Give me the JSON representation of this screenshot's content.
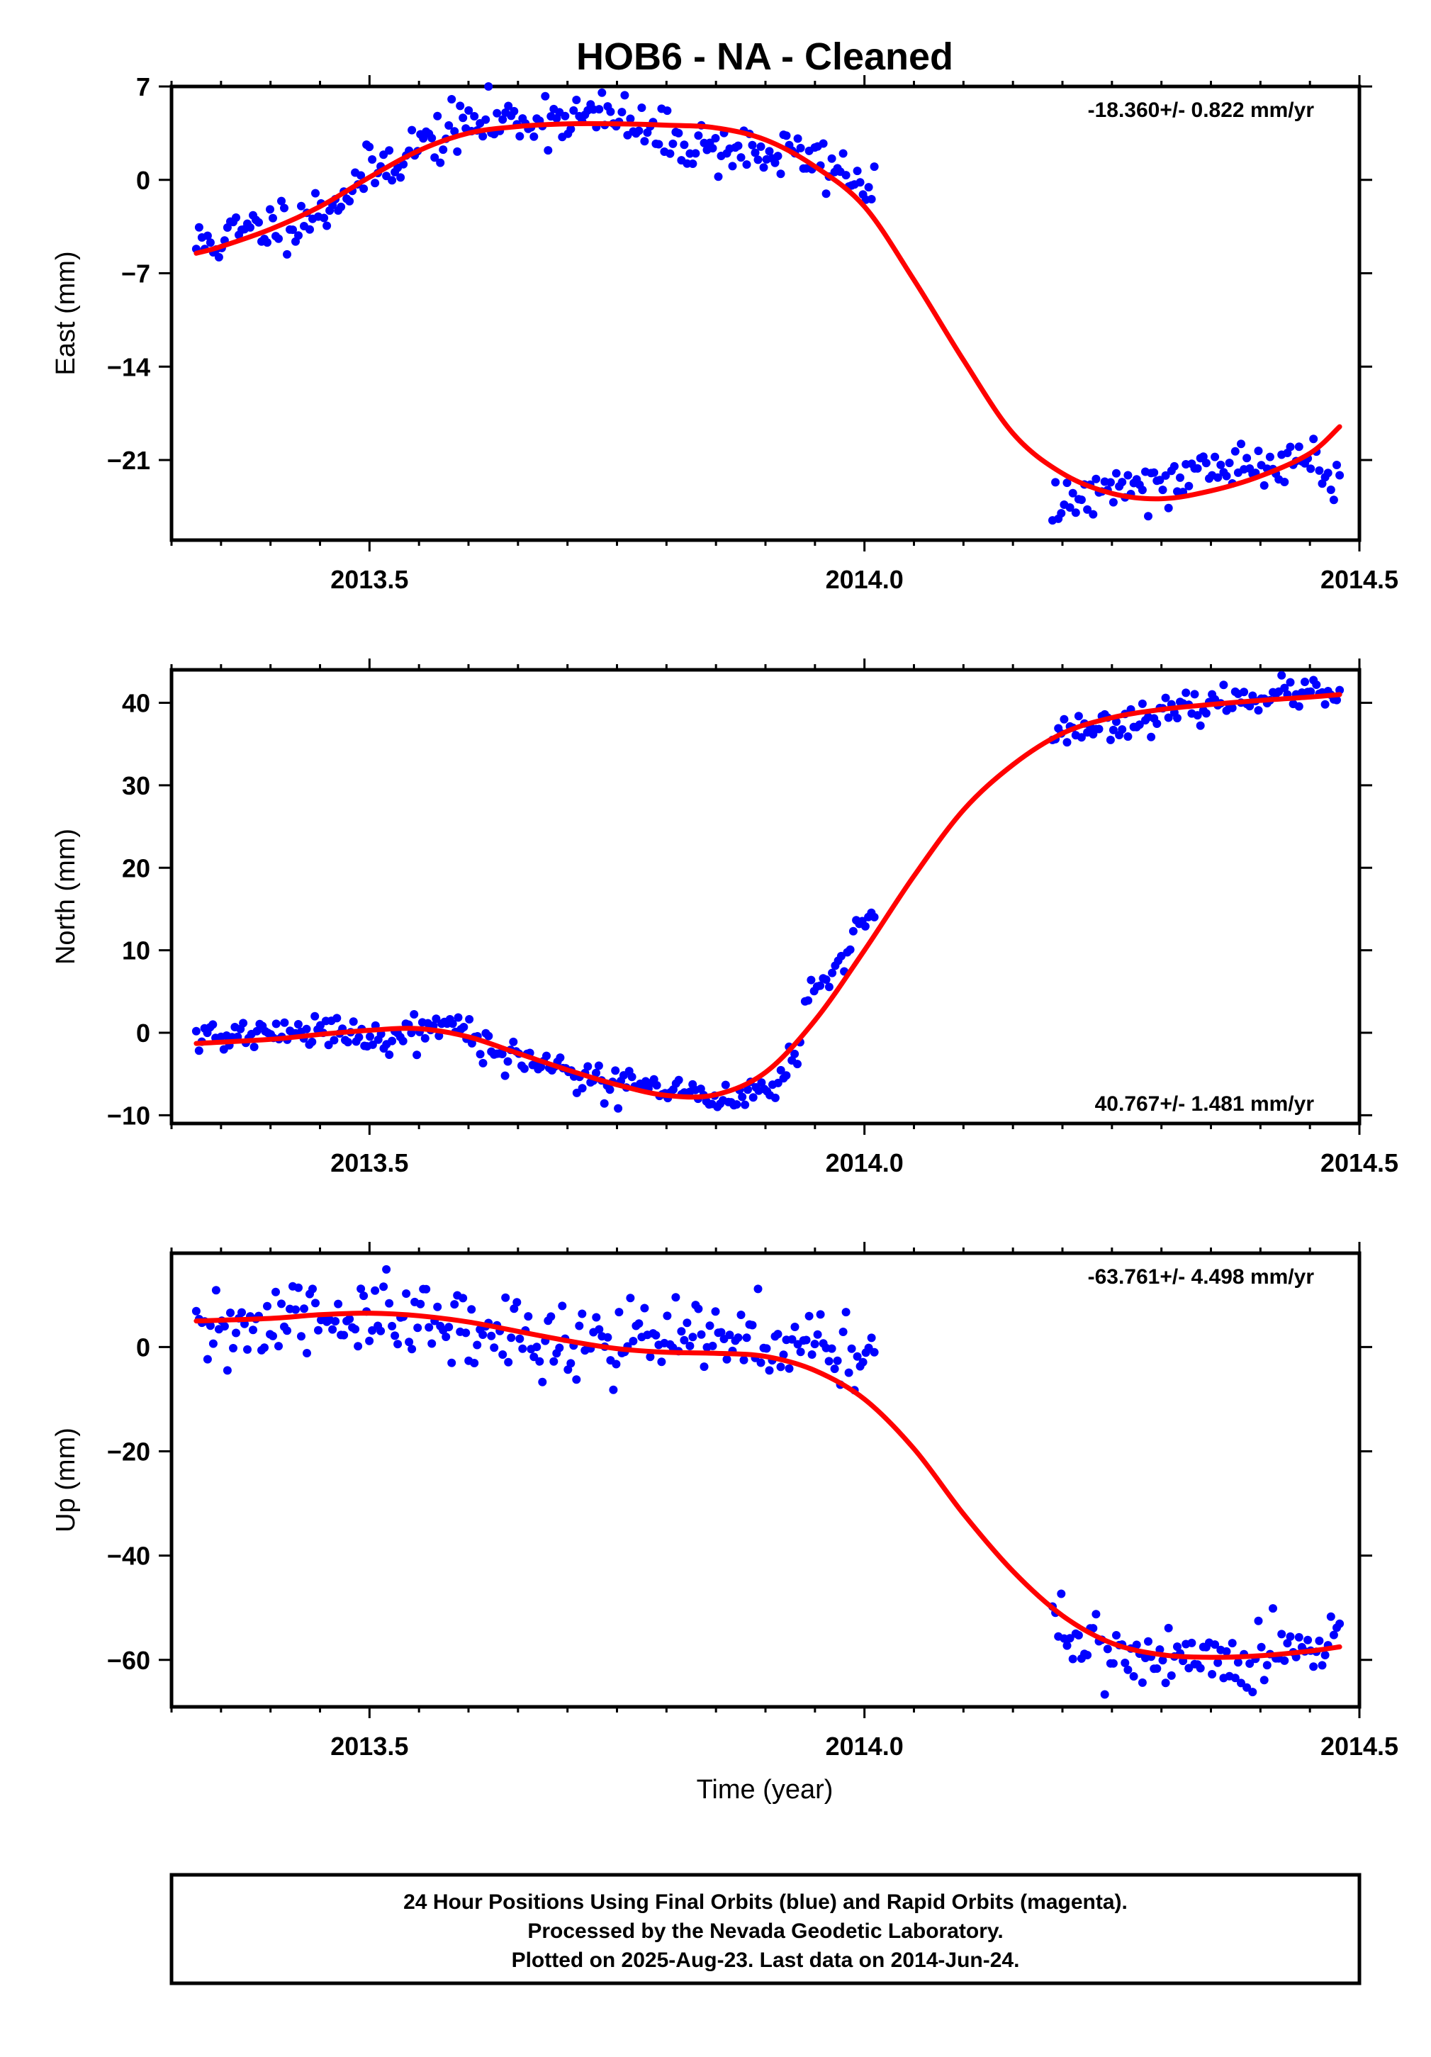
{
  "title": "HOB6  - NA - Cleaned",
  "xlabel": "Time (year)",
  "footer": [
    "24 Hour Positions Using Final Orbits (blue) and Rapid Orbits (magenta).",
    "Processed by the Nevada Geodetic Laboratory.",
    "Plotted on 2025-Aug-23. Last data on 2014-Jun-24."
  ],
  "colors": {
    "final_orbits": "#0000ff",
    "fit": "#ff0000",
    "frame": "#000000"
  },
  "chart_data": [
    {
      "type": "scatter",
      "component": "east",
      "ylabel": "East (mm)",
      "rate_label": "-18.360+/- 0.822 mm/yr",
      "rate_position": "top-right",
      "xlim": [
        2013.3,
        2014.5
      ],
      "ylim": [
        -27,
        7
      ],
      "xticks": [
        2013.5,
        2014.0,
        2014.5
      ],
      "xtick_labels": [
        "2013.5",
        "2014.0",
        "2014.5"
      ],
      "yticks": [
        7,
        0,
        -7,
        -14,
        -21
      ],
      "ytick_labels": [
        "7",
        "0",
        "−7",
        "−14",
        "−21"
      ],
      "gap": [
        2014.01,
        2014.19
      ],
      "series": [
        {
          "role": "data",
          "segments": [
            {
              "x0": 2013.325,
              "x1": 2014.01,
              "n": 240,
              "knots": [
                [
                  2013.32,
                  -5.0
                ],
                [
                  2013.4,
                  -3.4
                ],
                [
                  2013.45,
                  -2.4
                ],
                [
                  2013.5,
                  0.5
                ],
                [
                  2013.55,
                  2.6
                ],
                [
                  2013.6,
                  4.2
                ],
                [
                  2013.65,
                  4.5
                ],
                [
                  2013.7,
                  4.8
                ],
                [
                  2013.75,
                  4.6
                ],
                [
                  2013.8,
                  3.0
                ],
                [
                  2013.85,
                  2.5
                ],
                [
                  2013.9,
                  2.0
                ],
                [
                  2013.95,
                  1.6
                ],
                [
                  2014.01,
                  -0.5
                ]
              ],
              "noise": 1.0,
              "seed": 11
            },
            {
              "x0": 2014.19,
              "x1": 2014.48,
              "n": 100,
              "knots": [
                [
                  2014.19,
                  -24.5
                ],
                [
                  2014.22,
                  -23.8
                ],
                [
                  2014.25,
                  -22.8
                ],
                [
                  2014.3,
                  -22.3
                ],
                [
                  2014.35,
                  -21.6
                ],
                [
                  2014.4,
                  -21.5
                ],
                [
                  2014.45,
                  -21.2
                ],
                [
                  2014.48,
                  -22.2
                ]
              ],
              "noise": 0.9,
              "seed": 12
            }
          ]
        },
        {
          "role": "fit",
          "points": [
            [
              2013.325,
              -5.5
            ],
            [
              2013.35,
              -5.0
            ],
            [
              2013.4,
              -3.7
            ],
            [
              2013.45,
              -2.0
            ],
            [
              2013.5,
              0.2
            ],
            [
              2013.55,
              2.2
            ],
            [
              2013.6,
              3.5
            ],
            [
              2013.65,
              4.0
            ],
            [
              2013.7,
              4.2
            ],
            [
              2013.75,
              4.2
            ],
            [
              2013.8,
              4.1
            ],
            [
              2013.85,
              3.9
            ],
            [
              2013.9,
              3.0
            ],
            [
              2013.95,
              1.0
            ],
            [
              2014.0,
              -2.0
            ],
            [
              2014.05,
              -7.5
            ],
            [
              2014.1,
              -13.5
            ],
            [
              2014.15,
              -19.0
            ],
            [
              2014.2,
              -22.0
            ],
            [
              2014.25,
              -23.5
            ],
            [
              2014.3,
              -23.9
            ],
            [
              2014.35,
              -23.3
            ],
            [
              2014.4,
              -22.2
            ],
            [
              2014.45,
              -20.5
            ],
            [
              2014.48,
              -18.5
            ]
          ]
        }
      ]
    },
    {
      "type": "scatter",
      "component": "north",
      "ylabel": "North (mm)",
      "rate_label": "40.767+/- 1.481 mm/yr",
      "rate_position": "bottom-right",
      "xlim": [
        2013.3,
        2014.5
      ],
      "ylim": [
        -11,
        44
      ],
      "xticks": [
        2013.5,
        2014.0,
        2014.5
      ],
      "xtick_labels": [
        "2013.5",
        "2014.0",
        "2014.5"
      ],
      "yticks": [
        40,
        30,
        20,
        10,
        0,
        -10
      ],
      "ytick_labels": [
        "40",
        "30",
        "20",
        "10",
        "0",
        "−10"
      ],
      "gap": [
        2014.01,
        2014.19
      ],
      "series": [
        {
          "role": "data",
          "segments": [
            {
              "x0": 2013.325,
              "x1": 2013.935,
              "n": 220,
              "knots": [
                [
                  2013.32,
                  -0.5
                ],
                [
                  2013.4,
                  -0.2
                ],
                [
                  2013.45,
                  0.3
                ],
                [
                  2013.5,
                  -0.5
                ],
                [
                  2013.58,
                  1.0
                ],
                [
                  2013.62,
                  -2.0
                ],
                [
                  2013.7,
                  -4.5
                ],
                [
                  2013.78,
                  -7.0
                ],
                [
                  2013.85,
                  -8.0
                ],
                [
                  2013.9,
                  -7.0
                ],
                [
                  2013.935,
                  -3.0
                ]
              ],
              "noise": 1.0,
              "seed": 21
            },
            {
              "x0": 2013.94,
              "x1": 2014.01,
              "n": 24,
              "knots": [
                [
                  2013.94,
                  4.0
                ],
                [
                  2013.96,
                  6.0
                ],
                [
                  2013.98,
                  9.0
                ],
                [
                  2013.99,
                  13.0
                ],
                [
                  2014.01,
                  14.0
                ]
              ],
              "noise": 0.8,
              "seed": 22
            },
            {
              "x0": 2014.19,
              "x1": 2014.48,
              "n": 100,
              "knots": [
                [
                  2014.19,
                  36.5
                ],
                [
                  2014.25,
                  37.5
                ],
                [
                  2014.3,
                  38.5
                ],
                [
                  2014.35,
                  39.8
                ],
                [
                  2014.4,
                  41.0
                ],
                [
                  2014.45,
                  41.2
                ],
                [
                  2014.48,
                  40.5
                ]
              ],
              "noise": 0.9,
              "seed": 23
            }
          ]
        },
        {
          "role": "fit",
          "points": [
            [
              2013.325,
              -1.3
            ],
            [
              2013.4,
              -0.8
            ],
            [
              2013.45,
              -0.2
            ],
            [
              2013.5,
              0.3
            ],
            [
              2013.55,
              0.5
            ],
            [
              2013.6,
              -0.5
            ],
            [
              2013.65,
              -2.5
            ],
            [
              2013.7,
              -4.5
            ],
            [
              2013.75,
              -6.3
            ],
            [
              2013.8,
              -7.6
            ],
            [
              2013.85,
              -7.5
            ],
            [
              2013.9,
              -4.8
            ],
            [
              2013.95,
              1.5
            ],
            [
              2014.0,
              10.0
            ],
            [
              2014.05,
              19.0
            ],
            [
              2014.1,
              27.0
            ],
            [
              2014.15,
              32.5
            ],
            [
              2014.2,
              36.3
            ],
            [
              2014.25,
              38.2
            ],
            [
              2014.3,
              39.2
            ],
            [
              2014.35,
              39.8
            ],
            [
              2014.4,
              40.3
            ],
            [
              2014.45,
              40.7
            ],
            [
              2014.48,
              41.0
            ]
          ]
        }
      ]
    },
    {
      "type": "scatter",
      "component": "up",
      "ylabel": "Up (mm)",
      "rate_label": "-63.761+/- 4.498 mm/yr",
      "rate_position": "top-right",
      "xlim": [
        2013.3,
        2014.5
      ],
      "ylim": [
        -69,
        18
      ],
      "xticks": [
        2013.5,
        2014.0,
        2014.5
      ],
      "xtick_labels": [
        "2013.5",
        "2014.0",
        "2014.5"
      ],
      "yticks": [
        0,
        -20,
        -40,
        -60
      ],
      "ytick_labels": [
        "0",
        "−20",
        "−40",
        "−60"
      ],
      "gap": [
        2014.01,
        2014.19
      ],
      "series": [
        {
          "role": "data",
          "segments": [
            {
              "x0": 2013.325,
              "x1": 2014.01,
              "n": 240,
              "knots": [
                [
                  2013.32,
                  1.0
                ],
                [
                  2013.38,
                  4.0
                ],
                [
                  2013.45,
                  6.0
                ],
                [
                  2013.5,
                  5.5
                ],
                [
                  2013.6,
                  3.0
                ],
                [
                  2013.7,
                  1.5
                ],
                [
                  2013.8,
                  2.0
                ],
                [
                  2013.85,
                  1.0
                ],
                [
                  2013.9,
                  0.0
                ],
                [
                  2013.95,
                  0.5
                ],
                [
                  2014.01,
                  -2.0
                ]
              ],
              "noise": 4.0,
              "seed": 31
            },
            {
              "x0": 2014.19,
              "x1": 2014.48,
              "n": 100,
              "knots": [
                [
                  2014.19,
                  -52.0
                ],
                [
                  2014.22,
                  -57.0
                ],
                [
                  2014.25,
                  -58.0
                ],
                [
                  2014.3,
                  -59.0
                ],
                [
                  2014.35,
                  -59.5
                ],
                [
                  2014.4,
                  -59.0
                ],
                [
                  2014.45,
                  -58.0
                ],
                [
                  2014.48,
                  -57.5
                ]
              ],
              "noise": 3.2,
              "seed": 32
            }
          ]
        },
        {
          "role": "fit",
          "points": [
            [
              2013.325,
              5.0
            ],
            [
              2013.4,
              5.5
            ],
            [
              2013.45,
              6.2
            ],
            [
              2013.5,
              6.5
            ],
            [
              2013.55,
              6.0
            ],
            [
              2013.6,
              4.8
            ],
            [
              2013.65,
              3.0
            ],
            [
              2013.7,
              1.2
            ],
            [
              2013.75,
              -0.3
            ],
            [
              2013.8,
              -1.0
            ],
            [
              2013.85,
              -1.2
            ],
            [
              2013.9,
              -1.8
            ],
            [
              2013.95,
              -4.5
            ],
            [
              2014.0,
              -10.0
            ],
            [
              2014.05,
              -19.5
            ],
            [
              2014.1,
              -32.0
            ],
            [
              2014.15,
              -43.0
            ],
            [
              2014.2,
              -51.5
            ],
            [
              2014.25,
              -56.8
            ],
            [
              2014.3,
              -59.0
            ],
            [
              2014.35,
              -59.5
            ],
            [
              2014.4,
              -59.2
            ],
            [
              2014.45,
              -58.3
            ],
            [
              2014.48,
              -57.5
            ]
          ]
        }
      ]
    }
  ]
}
